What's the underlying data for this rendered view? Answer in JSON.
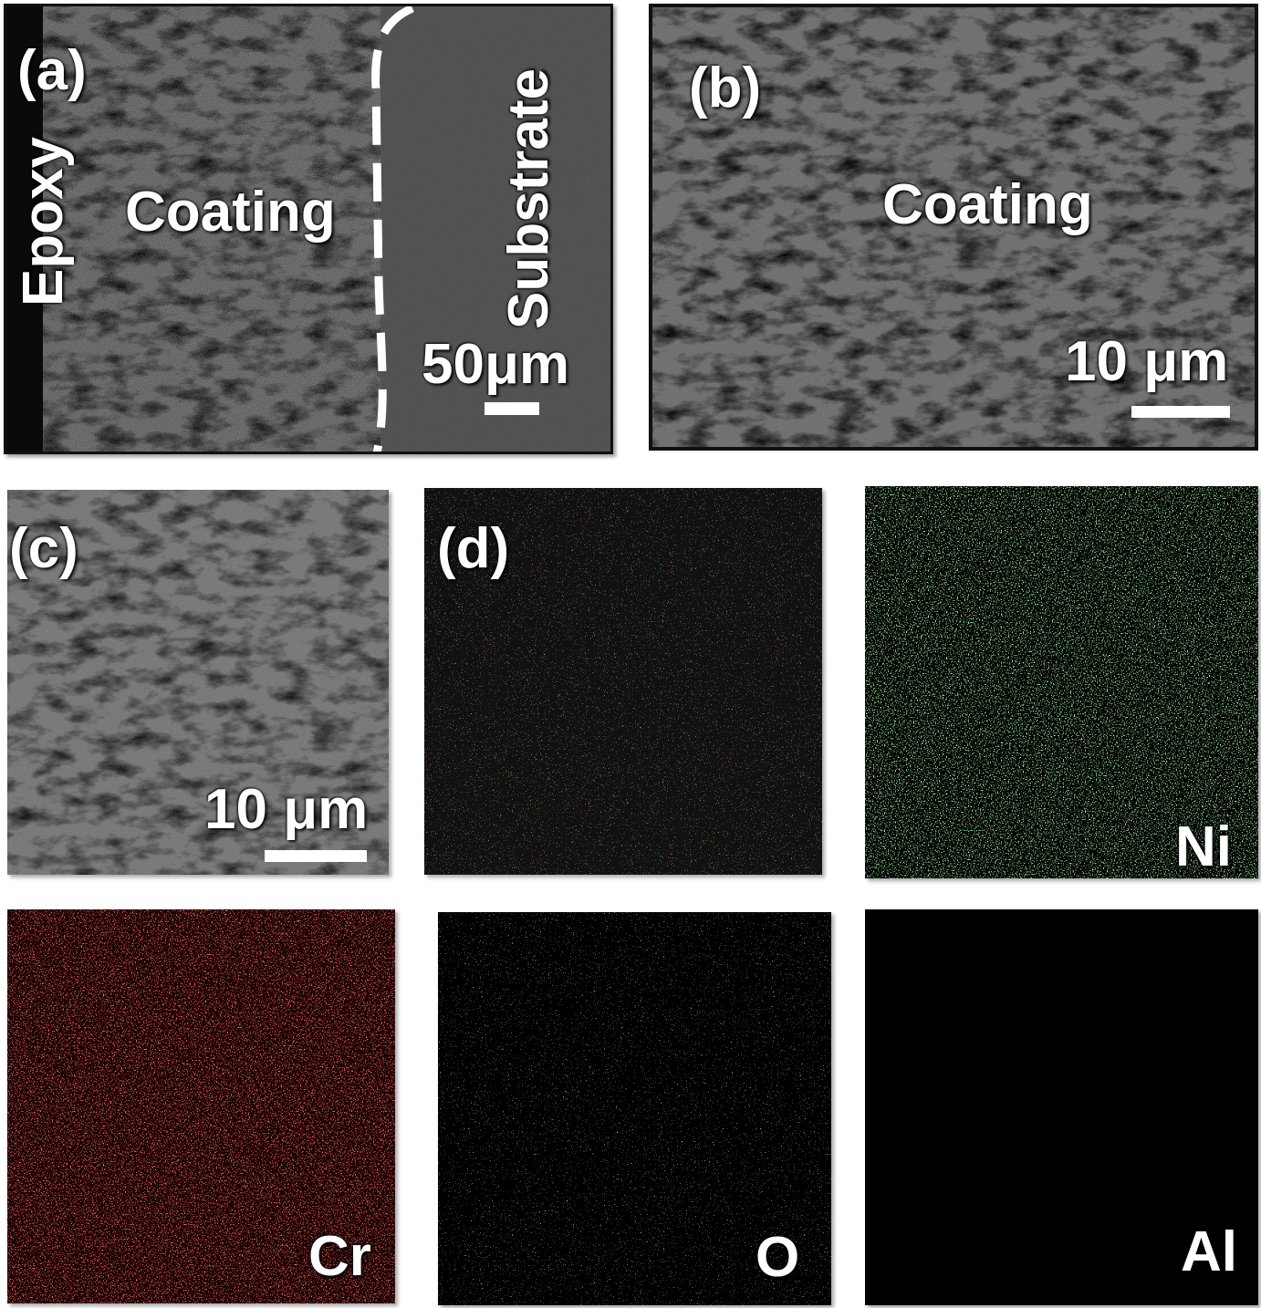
{
  "panels": [
    {
      "label": "(a)",
      "annotations": [
        "Epoxy",
        "Coating",
        "Substrate"
      ],
      "scale_bar": "50μm"
    },
    {
      "label": "(b)",
      "annotations": [
        "Coating"
      ],
      "scale_bar": "10 μm"
    },
    {
      "label": "(c)",
      "scale_bar": "10 μm"
    },
    {
      "label": "(d)"
    },
    {
      "element": "Ni"
    },
    {
      "element": "Cr"
    },
    {
      "element": "O"
    },
    {
      "element": "Al"
    }
  ]
}
